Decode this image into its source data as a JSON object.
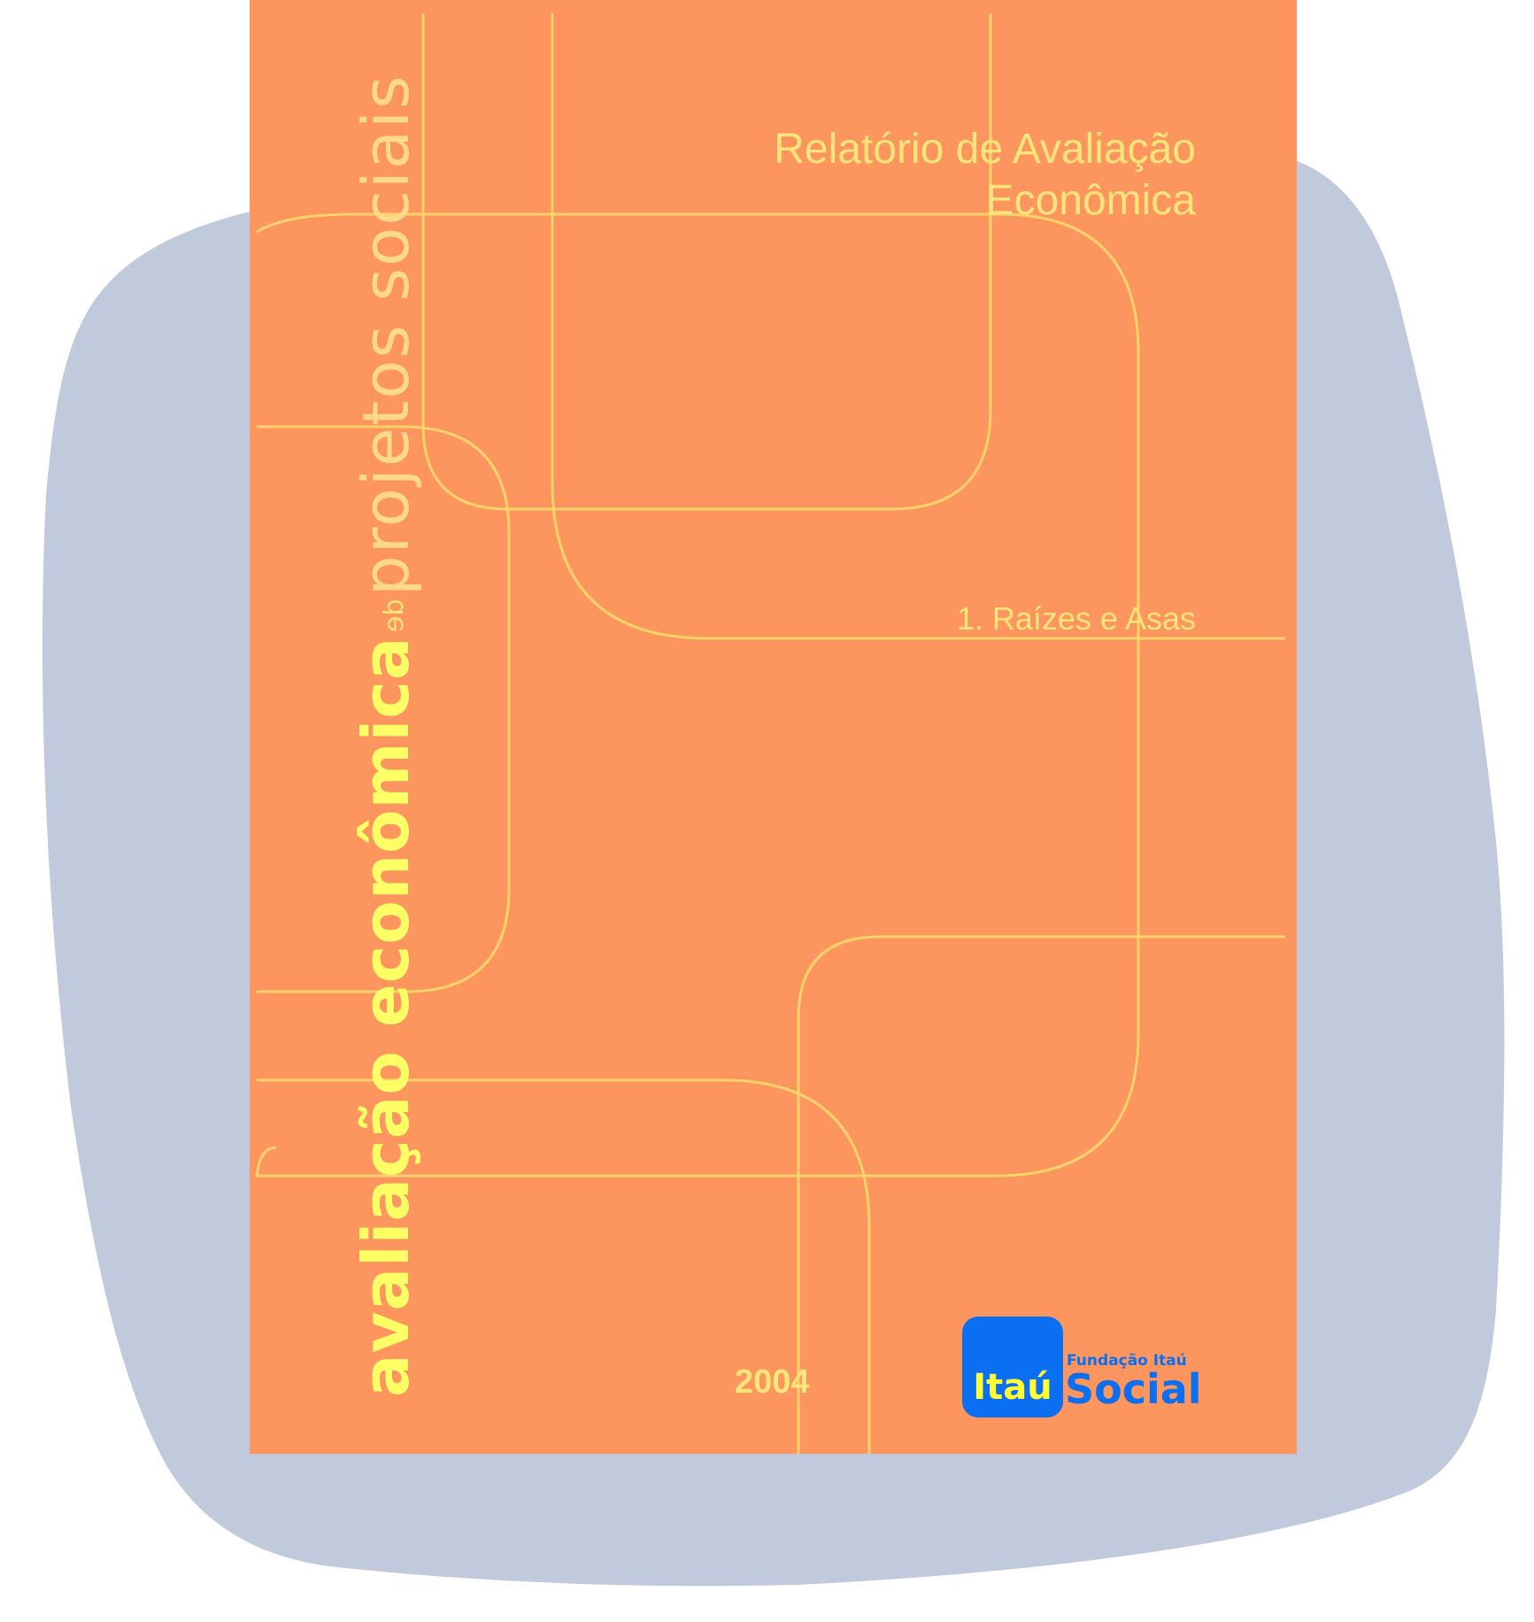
{
  "cover": {
    "report_title_line1": "Relatório de Avaliação",
    "report_title_line2": "Econômica",
    "volume_label": "1. Raízes e Asas",
    "series_title_strong": "avaliação econômica",
    "series_title_de": "de",
    "series_title_light": "projetos sociais",
    "year": "2004"
  },
  "logo": {
    "brand": "Itaú",
    "foundation": "Fundação Itaú",
    "program": "Social"
  },
  "colors": {
    "background_blob": "#c1cadd",
    "cover": "#fd955e",
    "line_art": "#ffd36b",
    "title_text": "#ffe57a",
    "series_title_text": "#ffff66",
    "logo_blue": "#0a6ff0",
    "logo_yellow": "#ffff33"
  }
}
